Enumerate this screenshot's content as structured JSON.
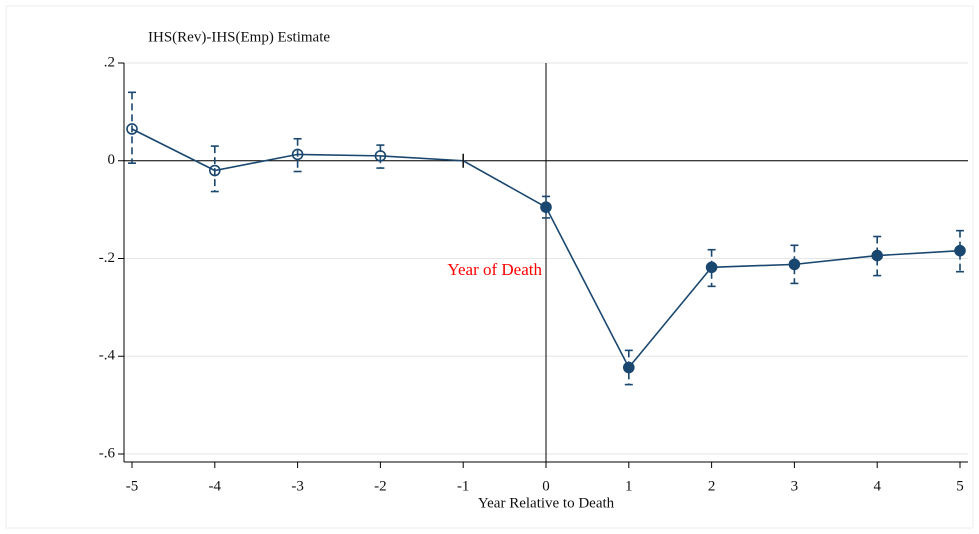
{
  "chart_data": {
    "type": "line",
    "y_label": "IHS(Rev)-IHS(Emp) Estimate",
    "x_label": "Year Relative to Death",
    "annotation": "Year of Death",
    "annotation_color": "#ff0000",
    "x": [
      -5,
      -4,
      -3,
      -2,
      -1,
      0,
      1,
      2,
      3,
      4,
      5
    ],
    "series": [
      {
        "color": "#1a476f",
        "values": [
          0.065,
          -0.02,
          0.013,
          0.01,
          0,
          -0.095,
          -0.423,
          -0.218,
          -0.212,
          -0.194,
          -0.184
        ],
        "upper": [
          0.14,
          0.03,
          0.045,
          0.032,
          null,
          -0.073,
          -0.388,
          -0.182,
          -0.173,
          -0.155,
          -0.143
        ],
        "lower": [
          -0.005,
          -0.063,
          -0.022,
          -0.015,
          null,
          -0.117,
          -0.458,
          -0.257,
          -0.251,
          -0.235,
          -0.227
        ],
        "markers": [
          "hollow",
          "hollow",
          "hollow",
          "hollow",
          "tick",
          "solid",
          "solid",
          "solid",
          "solid",
          "solid",
          "solid"
        ]
      }
    ],
    "xlim": [
      -5,
      5
    ],
    "ylim": [
      -0.6,
      0.2
    ],
    "xticks": [
      -5,
      -4,
      -3,
      -2,
      -1,
      0,
      1,
      2,
      3,
      4,
      5
    ],
    "yticks": [
      {
        "value": 0.2,
        "label": ".2"
      },
      0,
      {
        "value": -0.2,
        "label": "-.2"
      },
      {
        "value": -0.4,
        "label": "-.4"
      },
      {
        "value": -0.6,
        "label": "-.6"
      }
    ],
    "grid": true,
    "reference_x": 0,
    "reference_y": 0
  }
}
